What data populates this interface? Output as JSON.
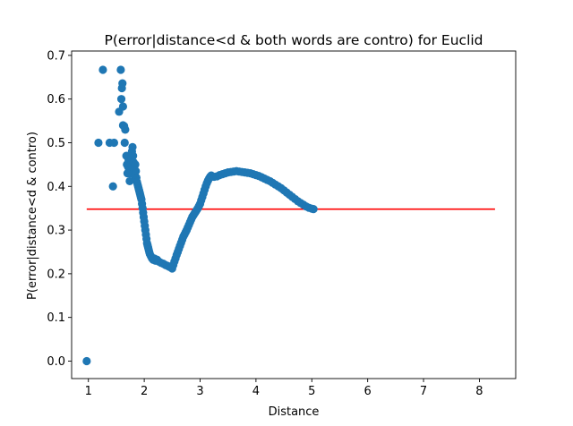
{
  "chart_data": {
    "type": "scatter",
    "title": "P(error|distance<d & both words are contro) for Euclid",
    "xlabel": "Distance",
    "ylabel": "P(error|distance<d & contro)",
    "xlim": [
      0.7,
      8.65
    ],
    "ylim": [
      -0.04,
      0.71
    ],
    "xticks": [
      1,
      2,
      3,
      4,
      5,
      6,
      7,
      8
    ],
    "yticks": [
      0.0,
      0.1,
      0.2,
      0.3,
      0.4,
      0.5,
      0.6,
      0.7
    ],
    "xtick_labels": [
      "1",
      "2",
      "3",
      "4",
      "5",
      "6",
      "7",
      "8"
    ],
    "ytick_labels": [
      "0.0",
      "0.1",
      "0.2",
      "0.3",
      "0.4",
      "0.5",
      "0.6",
      "0.7"
    ],
    "grid": false,
    "marker_color": "#1f77b4",
    "series": [
      {
        "kind": "scatter",
        "points": [
          [
            0.97,
            0.0
          ],
          [
            1.18,
            0.5
          ],
          [
            1.26,
            0.667
          ],
          [
            1.38,
            0.5
          ],
          [
            1.44,
            0.4
          ],
          [
            1.46,
            0.5
          ],
          [
            1.55,
            0.571
          ],
          [
            1.58,
            0.667
          ],
          [
            1.59,
            0.6
          ],
          [
            1.6,
            0.625
          ],
          [
            1.61,
            0.636
          ],
          [
            1.62,
            0.583
          ],
          [
            1.62,
            0.54
          ],
          [
            1.64,
            0.538
          ],
          [
            1.65,
            0.5
          ],
          [
            1.66,
            0.53
          ],
          [
            1.68,
            0.47
          ],
          [
            1.69,
            0.45
          ],
          [
            1.7,
            0.43
          ],
          [
            1.71,
            0.445
          ],
          [
            1.72,
            0.46
          ],
          [
            1.73,
            0.44
          ],
          [
            1.74,
            0.412
          ],
          [
            1.75,
            0.43
          ],
          [
            1.76,
            0.45
          ],
          [
            1.77,
            0.465
          ],
          [
            1.78,
            0.48
          ],
          [
            1.79,
            0.49
          ],
          [
            1.8,
            0.47
          ],
          [
            1.81,
            0.455
          ],
          [
            1.82,
            0.44
          ],
          [
            1.83,
            0.425
          ],
          [
            1.84,
            0.45
          ],
          [
            1.85,
            0.435
          ],
          [
            1.86,
            0.42
          ],
          [
            1.87,
            0.41
          ],
          [
            1.88,
            0.405
          ],
          [
            1.89,
            0.4
          ],
          [
            1.9,
            0.395
          ],
          [
            1.91,
            0.39
          ],
          [
            1.92,
            0.385
          ],
          [
            1.93,
            0.38
          ],
          [
            1.94,
            0.375
          ],
          [
            1.95,
            0.37
          ],
          [
            1.96,
            0.36
          ],
          [
            1.97,
            0.35
          ],
          [
            1.98,
            0.34
          ],
          [
            1.99,
            0.33
          ],
          [
            2.0,
            0.32
          ],
          [
            2.01,
            0.31
          ],
          [
            2.02,
            0.3
          ],
          [
            2.03,
            0.29
          ],
          [
            2.04,
            0.28
          ],
          [
            2.05,
            0.27
          ],
          [
            2.06,
            0.265
          ],
          [
            2.07,
            0.26
          ],
          [
            2.08,
            0.255
          ],
          [
            2.09,
            0.25
          ],
          [
            2.1,
            0.245
          ],
          [
            2.12,
            0.24
          ],
          [
            2.14,
            0.235
          ],
          [
            2.16,
            0.232
          ],
          [
            2.18,
            0.235
          ],
          [
            2.2,
            0.23
          ],
          [
            2.23,
            0.232
          ],
          [
            2.26,
            0.228
          ],
          [
            2.3,
            0.225
          ],
          [
            2.34,
            0.223
          ],
          [
            2.38,
            0.22
          ],
          [
            2.42,
            0.218
          ],
          [
            2.45,
            0.216
          ],
          [
            2.48,
            0.214
          ],
          [
            2.5,
            0.212
          ],
          [
            2.52,
            0.22
          ],
          [
            2.54,
            0.228
          ],
          [
            2.56,
            0.235
          ],
          [
            2.58,
            0.243
          ],
          [
            2.6,
            0.25
          ],
          [
            2.62,
            0.257
          ],
          [
            2.64,
            0.264
          ],
          [
            2.66,
            0.271
          ],
          [
            2.68,
            0.278
          ],
          [
            2.7,
            0.285
          ],
          [
            2.72,
            0.29
          ],
          [
            2.74,
            0.295
          ],
          [
            2.76,
            0.3
          ],
          [
            2.78,
            0.306
          ],
          [
            2.8,
            0.312
          ],
          [
            2.82,
            0.318
          ],
          [
            2.84,
            0.324
          ],
          [
            2.86,
            0.33
          ],
          [
            2.88,
            0.334
          ],
          [
            2.9,
            0.338
          ],
          [
            2.92,
            0.342
          ],
          [
            2.94,
            0.346
          ],
          [
            2.96,
            0.35
          ],
          [
            2.98,
            0.355
          ],
          [
            3.0,
            0.36
          ],
          [
            3.02,
            0.368
          ],
          [
            3.04,
            0.376
          ],
          [
            3.06,
            0.384
          ],
          [
            3.08,
            0.392
          ],
          [
            3.1,
            0.4
          ],
          [
            3.12,
            0.407
          ],
          [
            3.14,
            0.413
          ],
          [
            3.16,
            0.418
          ],
          [
            3.18,
            0.422
          ],
          [
            3.2,
            0.425
          ],
          [
            3.25,
            0.422
          ],
          [
            3.3,
            0.423
          ],
          [
            3.35,
            0.426
          ],
          [
            3.4,
            0.428
          ],
          [
            3.45,
            0.43
          ],
          [
            3.5,
            0.432
          ],
          [
            3.55,
            0.433
          ],
          [
            3.6,
            0.434
          ],
          [
            3.65,
            0.435
          ],
          [
            3.7,
            0.434
          ],
          [
            3.75,
            0.433
          ],
          [
            3.8,
            0.432
          ],
          [
            3.85,
            0.431
          ],
          [
            3.9,
            0.43
          ],
          [
            3.95,
            0.428
          ],
          [
            4.0,
            0.426
          ],
          [
            4.05,
            0.424
          ],
          [
            4.1,
            0.421
          ],
          [
            4.15,
            0.418
          ],
          [
            4.2,
            0.415
          ],
          [
            4.25,
            0.412
          ],
          [
            4.3,
            0.408
          ],
          [
            4.35,
            0.404
          ],
          [
            4.4,
            0.4
          ],
          [
            4.45,
            0.396
          ],
          [
            4.5,
            0.391
          ],
          [
            4.55,
            0.386
          ],
          [
            4.6,
            0.381
          ],
          [
            4.65,
            0.376
          ],
          [
            4.7,
            0.371
          ],
          [
            4.75,
            0.366
          ],
          [
            4.8,
            0.362
          ],
          [
            4.85,
            0.358
          ],
          [
            4.9,
            0.354
          ],
          [
            4.95,
            0.351
          ],
          [
            5.0,
            0.349
          ],
          [
            5.03,
            0.348
          ]
        ]
      },
      {
        "kind": "line",
        "color": "#ff0000",
        "x": [
          0.97,
          8.28
        ],
        "y": [
          0.348,
          0.348
        ]
      }
    ]
  }
}
